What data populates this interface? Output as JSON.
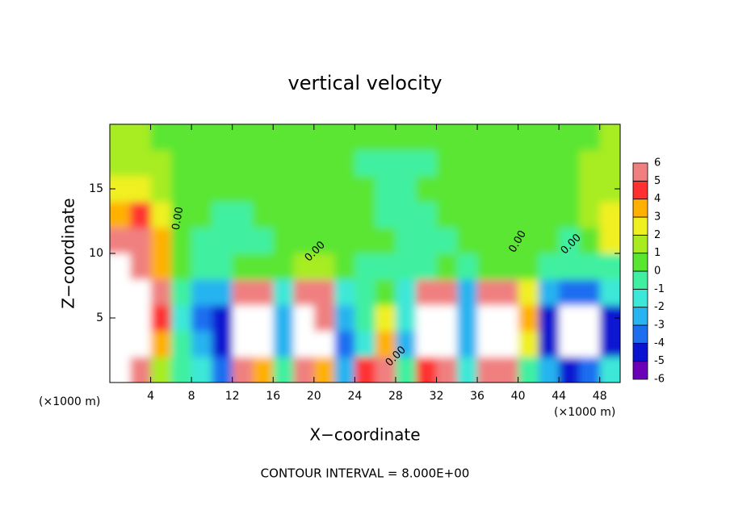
{
  "chart_data": {
    "type": "contourf",
    "title": "vertical velocity",
    "xlabel": "X−coordinate",
    "ylabel": "Z−coordinate",
    "x_unit_label": "(×1000 m)",
    "footer": "CONTOUR INTERVAL = 8.000E+00",
    "contour_label": "0.00",
    "xlim": [
      0,
      50
    ],
    "ylim": [
      0,
      20
    ],
    "xticks": [
      4,
      8,
      12,
      16,
      20,
      24,
      28,
      32,
      36,
      40,
      44,
      48
    ],
    "yticks": [
      5,
      10,
      15
    ],
    "x": [
      1,
      3,
      5,
      7,
      9,
      11,
      13,
      15,
      17,
      19,
      21,
      23,
      25,
      27,
      29,
      31,
      33,
      35,
      37,
      39,
      41,
      43,
      45,
      47,
      49
    ],
    "y": [
      1,
      3,
      5,
      7,
      9,
      11,
      13,
      15,
      17,
      19
    ],
    "z": [
      [
        7,
        5,
        1,
        -1,
        -2,
        -4,
        5,
        3,
        -1,
        5,
        3,
        -3,
        4,
        6,
        -1,
        4,
        5,
        -2,
        5,
        5,
        -1,
        -3,
        -5,
        -4,
        -2
      ],
      [
        7,
        7,
        3,
        -1,
        -3,
        -5,
        7,
        7,
        -3,
        7,
        7,
        -4,
        -2,
        3,
        -3,
        7,
        7,
        -3,
        7,
        7,
        2,
        -5,
        -7,
        -7,
        -5
      ],
      [
        7,
        7,
        4,
        -2,
        -4,
        -5,
        7,
        7,
        -3,
        7,
        6,
        -3,
        -1,
        2,
        -2,
        7,
        7,
        -3,
        7,
        7,
        3,
        -5,
        -7,
        -7,
        -5
      ],
      [
        7,
        7,
        5,
        -1,
        -3,
        -3,
        5,
        5,
        -2,
        5,
        5,
        -2,
        -1,
        0,
        -2,
        5,
        5,
        -3,
        6,
        6,
        2,
        -3,
        -4,
        -4,
        -2
      ],
      [
        7,
        6,
        3,
        0,
        -1,
        -1,
        0,
        0,
        0,
        1,
        1,
        0,
        -1,
        -1,
        -1,
        -1,
        0,
        -1,
        0,
        0,
        0,
        -1,
        -1,
        -1,
        -1
      ],
      [
        5,
        6,
        3,
        0,
        -1,
        -1,
        -1,
        -1,
        0,
        0,
        0,
        0,
        0,
        0,
        -1,
        -1,
        -1,
        0,
        0,
        0,
        0,
        0,
        -1,
        0,
        2
      ],
      [
        3,
        4,
        2,
        0,
        0,
        -1,
        -1,
        0,
        0,
        0,
        0,
        0,
        0,
        -1,
        -1,
        -1,
        0,
        0,
        0,
        0,
        0,
        0,
        0,
        1,
        2
      ],
      [
        2,
        2,
        1,
        0,
        0,
        0,
        0,
        0,
        0,
        0,
        0,
        0,
        0,
        -1,
        -1,
        0,
        0,
        0,
        0,
        0,
        0,
        0,
        0,
        1,
        1
      ],
      [
        1,
        1,
        1,
        0,
        0,
        0,
        0,
        0,
        0,
        0,
        0,
        0,
        -1,
        -1,
        -1,
        -1,
        0,
        0,
        0,
        0,
        0,
        0,
        0,
        1,
        1
      ],
      [
        1,
        1,
        0,
        0,
        0,
        0,
        0,
        0,
        0,
        0,
        0,
        0,
        0,
        0,
        0,
        0,
        0,
        0,
        0,
        0,
        0,
        0,
        0,
        0,
        1
      ]
    ],
    "levels": [
      -6,
      -5,
      -4,
      -3,
      -2,
      -1,
      0,
      1,
      2,
      3,
      4,
      5,
      6
    ],
    "colors": [
      "#6a00b8",
      "#0a14d0",
      "#1e6ef0",
      "#28b4f0",
      "#3ce8d8",
      "#40f0a0",
      "#5ae630",
      "#a8ec20",
      "#f0f020",
      "#ffb000",
      "#ff3030",
      "#f08080"
    ],
    "outside_color": "#ffffff"
  }
}
